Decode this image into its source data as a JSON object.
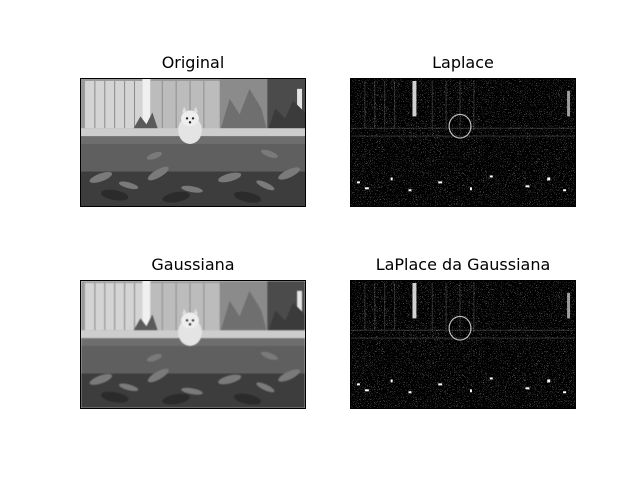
{
  "figure": {
    "panels": [
      {
        "title": "Original",
        "kind": "gray"
      },
      {
        "title": "Laplace",
        "kind": "edges"
      },
      {
        "title": "Gaussiana",
        "kind": "gray"
      },
      {
        "title": "LaPlace da Gaussiana",
        "kind": "edges"
      }
    ]
  }
}
